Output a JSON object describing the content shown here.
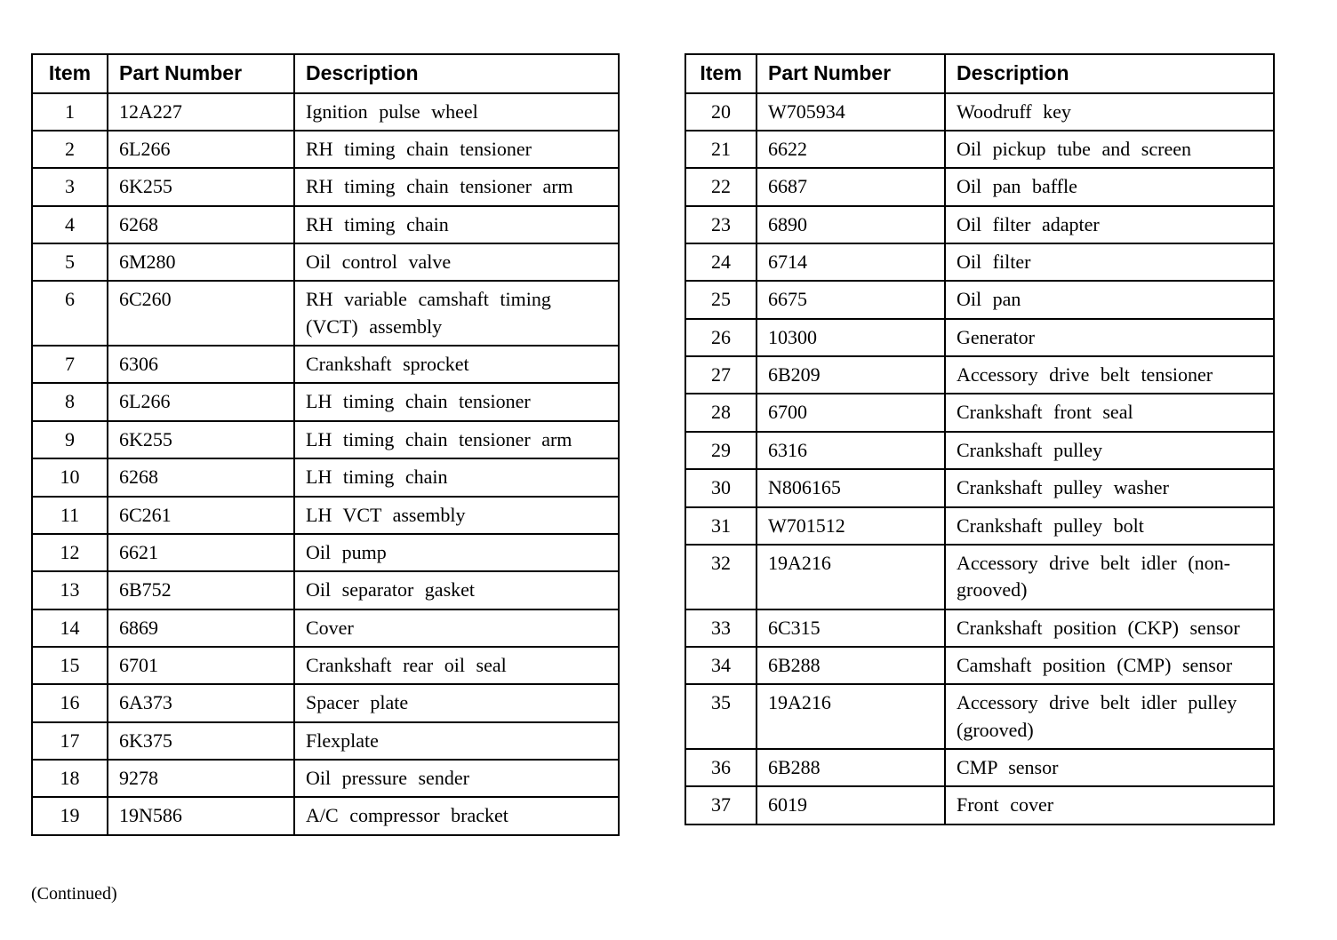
{
  "page": {
    "continued_label": "(Continued)"
  },
  "tables": [
    {
      "name": "parts-table-left",
      "headers": [
        "Item",
        "Part Number",
        "Description"
      ],
      "rows": [
        [
          "1",
          "12A227",
          "Ignition pulse wheel"
        ],
        [
          "2",
          "6L266",
          "RH timing chain tensioner"
        ],
        [
          "3",
          "6K255",
          "RH timing chain tensioner arm"
        ],
        [
          "4",
          "6268",
          "RH timing chain"
        ],
        [
          "5",
          "6M280",
          "Oil control valve"
        ],
        [
          "6",
          "6C260",
          "RH variable camshaft timing (VCT) assembly"
        ],
        [
          "7",
          "6306",
          "Crankshaft sprocket"
        ],
        [
          "8",
          "6L266",
          "LH timing chain tensioner"
        ],
        [
          "9",
          "6K255",
          "LH timing chain tensioner arm"
        ],
        [
          "10",
          "6268",
          "LH timing chain"
        ],
        [
          "11",
          "6C261",
          "LH VCT assembly"
        ],
        [
          "12",
          "6621",
          "Oil pump"
        ],
        [
          "13",
          "6B752",
          "Oil separator gasket"
        ],
        [
          "14",
          "6869",
          "Cover"
        ],
        [
          "15",
          "6701",
          "Crankshaft rear oil seal"
        ],
        [
          "16",
          "6A373",
          "Spacer plate"
        ],
        [
          "17",
          "6K375",
          "Flexplate"
        ],
        [
          "18",
          "9278",
          "Oil pressure sender"
        ],
        [
          "19",
          "19N586",
          "A/C compressor bracket"
        ]
      ]
    },
    {
      "name": "parts-table-right",
      "headers": [
        "Item",
        "Part Number",
        "Description"
      ],
      "rows": [
        [
          "20",
          "W705934",
          "Woodruff key"
        ],
        [
          "21",
          "6622",
          "Oil pickup tube and screen"
        ],
        [
          "22",
          "6687",
          "Oil pan baffle"
        ],
        [
          "23",
          "6890",
          "Oil filter adapter"
        ],
        [
          "24",
          "6714",
          "Oil filter"
        ],
        [
          "25",
          "6675",
          "Oil pan"
        ],
        [
          "26",
          "10300",
          "Generator"
        ],
        [
          "27",
          "6B209",
          "Accessory drive belt tensioner"
        ],
        [
          "28",
          "6700",
          "Crankshaft front seal"
        ],
        [
          "29",
          "6316",
          "Crankshaft pulley"
        ],
        [
          "30",
          "N806165",
          "Crankshaft pulley washer"
        ],
        [
          "31",
          "W701512",
          "Crankshaft pulley bolt"
        ],
        [
          "32",
          "19A216",
          "Accessory drive belt idler (non-grooved)"
        ],
        [
          "33",
          "6C315",
          "Crankshaft position (CKP) sensor"
        ],
        [
          "34",
          "6B288",
          "Camshaft position (CMP) sensor"
        ],
        [
          "35",
          "19A216",
          "Accessory drive belt idler pulley (grooved)"
        ],
        [
          "36",
          "6B288",
          "CMP sensor"
        ],
        [
          "37",
          "6019",
          "Front cover"
        ]
      ]
    }
  ]
}
